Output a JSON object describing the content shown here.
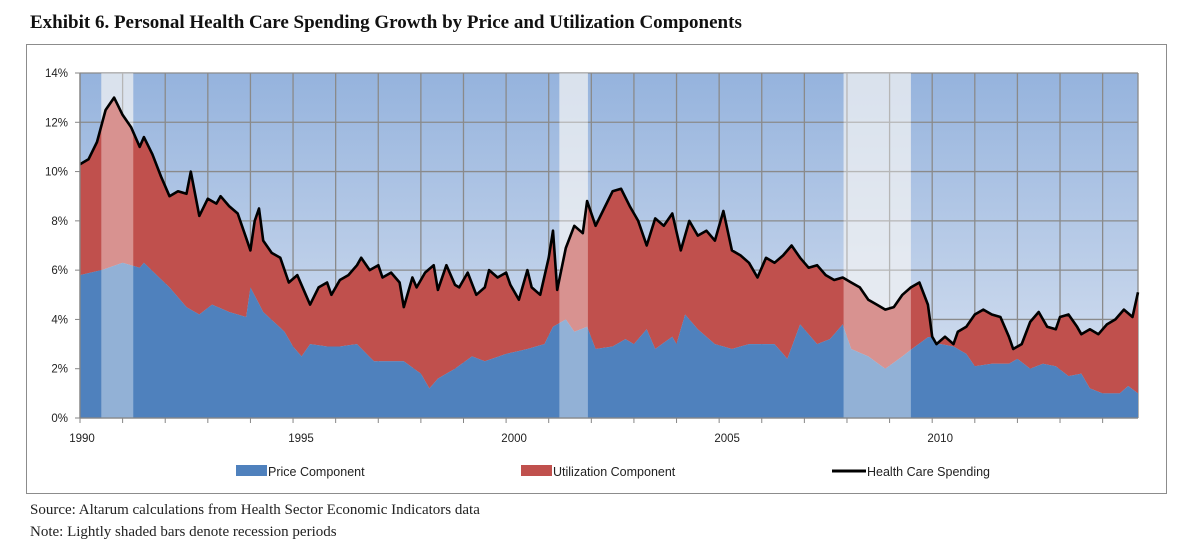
{
  "title": "Exhibit 6. Personal Health Care Spending Growth by Price and Utilization Components",
  "footnotes": {
    "source": "Source: Altarum calculations from Health Sector Economic Indicators data",
    "note": "Note:  Lightly shaded bars denote recession periods"
  },
  "colors": {
    "price": "#4f81bd",
    "utilization": "#c0504d",
    "spending_line": "#000000",
    "bg_top": "#95b3dd",
    "bg_bottom": "#dbe4f2",
    "recession": "#e8e8e8",
    "grid": "#8a8a8a"
  },
  "chart_data": {
    "type": "area",
    "title": "Exhibit 6. Personal Health Care Spending Growth by Price and Utilization Components",
    "xlabel": "",
    "ylabel": "",
    "xlim": [
      1990,
      2014.83
    ],
    "ylim": [
      0,
      14
    ],
    "y_ticks": [
      0,
      2,
      4,
      6,
      8,
      10,
      12,
      14
    ],
    "y_tick_labels": [
      "0%",
      "2%",
      "4%",
      "6%",
      "8%",
      "10%",
      "12%",
      "14%"
    ],
    "x_ticks": [
      1990,
      1991,
      1992,
      1993,
      1994,
      1995,
      1996,
      1997,
      1998,
      1999,
      2000,
      2001,
      2002,
      2003,
      2004,
      2005,
      2006,
      2007,
      2008,
      2009,
      2010,
      2011,
      2012,
      2013,
      2014
    ],
    "x_tick_labels": [
      {
        "year": 1990,
        "label": "1990"
      },
      {
        "year": 1995,
        "label": "1995"
      },
      {
        "year": 2000,
        "label": "2000"
      },
      {
        "year": 2005,
        "label": "2005"
      },
      {
        "year": 2010,
        "label": "2010"
      }
    ],
    "grid": true,
    "legend_position": "bottom",
    "recessions": [
      {
        "start": 1990.5,
        "end": 1991.25
      },
      {
        "start": 2001.25,
        "end": 2001.92
      },
      {
        "start": 2007.92,
        "end": 2009.5
      }
    ],
    "series": [
      {
        "name": "Price Component",
        "kind": "area",
        "x": [
          1990.0,
          1990.5,
          1991.0,
          1991.4,
          1991.5,
          1991.8,
          1992.1,
          1992.5,
          1992.8,
          1993.1,
          1993.5,
          1993.9,
          1994.0,
          1994.3,
          1994.8,
          1995.0,
          1995.2,
          1995.4,
          1995.8,
          1996.1,
          1996.5,
          1996.9,
          1997.3,
          1997.6,
          1998.0,
          1998.2,
          1998.4,
          1998.8,
          1999.2,
          1999.5,
          2000.0,
          2000.5,
          2000.9,
          2001.1,
          2001.4,
          2001.6,
          2001.9,
          2002.1,
          2002.5,
          2002.8,
          2003.0,
          2003.3,
          2003.5,
          2003.9,
          2004.0,
          2004.2,
          2004.5,
          2004.9,
          2005.3,
          2005.7,
          2006.0,
          2006.3,
          2006.6,
          2006.9,
          2007.3,
          2007.6,
          2007.9,
          2008.1,
          2008.5,
          2008.9,
          2009.3,
          2009.6,
          2010.0,
          2010.2,
          2010.5,
          2010.8,
          2011.0,
          2011.4,
          2011.8,
          2012.0,
          2012.3,
          2012.6,
          2012.9,
          2013.2,
          2013.5,
          2013.7,
          2014.0,
          2014.4,
          2014.6,
          2014.83
        ],
        "values": [
          5.8,
          6.0,
          6.3,
          6.1,
          6.3,
          5.8,
          5.3,
          4.5,
          4.2,
          4.6,
          4.3,
          4.1,
          5.3,
          4.3,
          3.5,
          2.9,
          2.5,
          3.0,
          2.9,
          2.9,
          3.0,
          2.3,
          2.3,
          2.3,
          1.8,
          1.2,
          1.6,
          2.0,
          2.5,
          2.3,
          2.6,
          2.8,
          3.0,
          3.7,
          4.0,
          3.5,
          3.7,
          2.8,
          2.9,
          3.2,
          3.0,
          3.6,
          2.8,
          3.3,
          3.0,
          4.2,
          3.6,
          3.0,
          2.8,
          3.0,
          3.0,
          3.0,
          2.4,
          3.8,
          3.0,
          3.2,
          3.8,
          2.8,
          2.5,
          2.0,
          2.5,
          2.9,
          3.4,
          3.0,
          2.9,
          2.6,
          2.1,
          2.2,
          2.2,
          2.4,
          2.0,
          2.2,
          2.1,
          1.7,
          1.8,
          1.2,
          1.0,
          1.0,
          1.3,
          1.0
        ]
      },
      {
        "name": "Utilization Component",
        "kind": "area",
        "note": "stacked on Price Component; top edge equals Health Care Spending"
      },
      {
        "name": "Health Care Spending",
        "kind": "line",
        "x": [
          1990.0,
          1990.2,
          1990.4,
          1990.6,
          1990.8,
          1991.0,
          1991.2,
          1991.4,
          1991.5,
          1991.7,
          1991.9,
          1992.1,
          1992.3,
          1992.5,
          1992.6,
          1992.8,
          1993.0,
          1993.2,
          1993.3,
          1993.5,
          1993.7,
          1993.9,
          1994.0,
          1994.1,
          1994.2,
          1994.3,
          1994.5,
          1994.7,
          1994.9,
          1995.1,
          1995.3,
          1995.4,
          1995.6,
          1995.8,
          1995.9,
          1996.1,
          1996.3,
          1996.5,
          1996.6,
          1996.8,
          1997.0,
          1997.1,
          1997.3,
          1997.5,
          1997.6,
          1997.8,
          1997.9,
          1998.1,
          1998.3,
          1998.4,
          1998.6,
          1998.8,
          1998.9,
          1999.1,
          1999.3,
          1999.5,
          1999.6,
          1999.8,
          2000.0,
          2000.1,
          2000.3,
          2000.5,
          2000.6,
          2000.8,
          2001.0,
          2001.1,
          2001.2,
          2001.4,
          2001.6,
          2001.8,
          2001.9,
          2002.1,
          2002.3,
          2002.5,
          2002.7,
          2002.9,
          2003.1,
          2003.3,
          2003.5,
          2003.7,
          2003.9,
          2004.1,
          2004.3,
          2004.5,
          2004.7,
          2004.9,
          2005.1,
          2005.3,
          2005.5,
          2005.7,
          2005.9,
          2006.1,
          2006.3,
          2006.5,
          2006.7,
          2006.9,
          2007.1,
          2007.3,
          2007.5,
          2007.7,
          2007.9,
          2008.1,
          2008.3,
          2008.5,
          2008.7,
          2008.9,
          2009.1,
          2009.3,
          2009.5,
          2009.7,
          2009.9,
          2010.0,
          2010.1,
          2010.3,
          2010.5,
          2010.6,
          2010.8,
          2011.0,
          2011.2,
          2011.4,
          2011.6,
          2011.8,
          2011.9,
          2012.1,
          2012.3,
          2012.5,
          2012.7,
          2012.9,
          2013.0,
          2013.2,
          2013.4,
          2013.5,
          2013.7,
          2013.9,
          2014.1,
          2014.3,
          2014.5,
          2014.7,
          2014.83
        ],
        "values": [
          10.3,
          10.5,
          11.2,
          12.5,
          13.0,
          12.3,
          11.8,
          11.0,
          11.4,
          10.7,
          9.8,
          9.0,
          9.2,
          9.1,
          10.0,
          8.2,
          8.9,
          8.7,
          9.0,
          8.6,
          8.3,
          7.3,
          6.8,
          8.0,
          8.5,
          7.2,
          6.7,
          6.5,
          5.5,
          5.8,
          5.0,
          4.6,
          5.3,
          5.5,
          5.0,
          5.6,
          5.8,
          6.2,
          6.5,
          6.0,
          6.2,
          5.7,
          5.9,
          5.5,
          4.5,
          5.7,
          5.3,
          5.9,
          6.2,
          5.2,
          6.2,
          5.4,
          5.3,
          5.9,
          5.0,
          5.3,
          6.0,
          5.7,
          5.9,
          5.4,
          4.8,
          6.0,
          5.3,
          5.0,
          6.5,
          7.6,
          5.2,
          6.9,
          7.8,
          7.5,
          8.8,
          7.8,
          8.5,
          9.2,
          9.3,
          8.6,
          8.0,
          7.0,
          8.1,
          7.8,
          8.3,
          6.8,
          8.0,
          7.4,
          7.6,
          7.2,
          8.4,
          6.8,
          6.6,
          6.3,
          5.7,
          6.5,
          6.3,
          6.6,
          7.0,
          6.5,
          6.1,
          6.2,
          5.8,
          5.6,
          5.7,
          5.5,
          5.3,
          4.8,
          4.6,
          4.4,
          4.5,
          5.0,
          5.3,
          5.5,
          4.6,
          3.3,
          3.0,
          3.3,
          3.0,
          3.5,
          3.7,
          4.2,
          4.4,
          4.2,
          4.1,
          3.3,
          2.8,
          3.0,
          3.9,
          4.3,
          3.7,
          3.6,
          4.1,
          4.2,
          3.7,
          3.4,
          3.6,
          3.4,
          3.8,
          4.0,
          4.4,
          4.1,
          5.1
        ]
      }
    ],
    "legend": [
      {
        "label": "Price Component",
        "symbol": "square"
      },
      {
        "label": "Utilization Component",
        "symbol": "square"
      },
      {
        "label": "Health Care Spending",
        "symbol": "line"
      }
    ]
  }
}
